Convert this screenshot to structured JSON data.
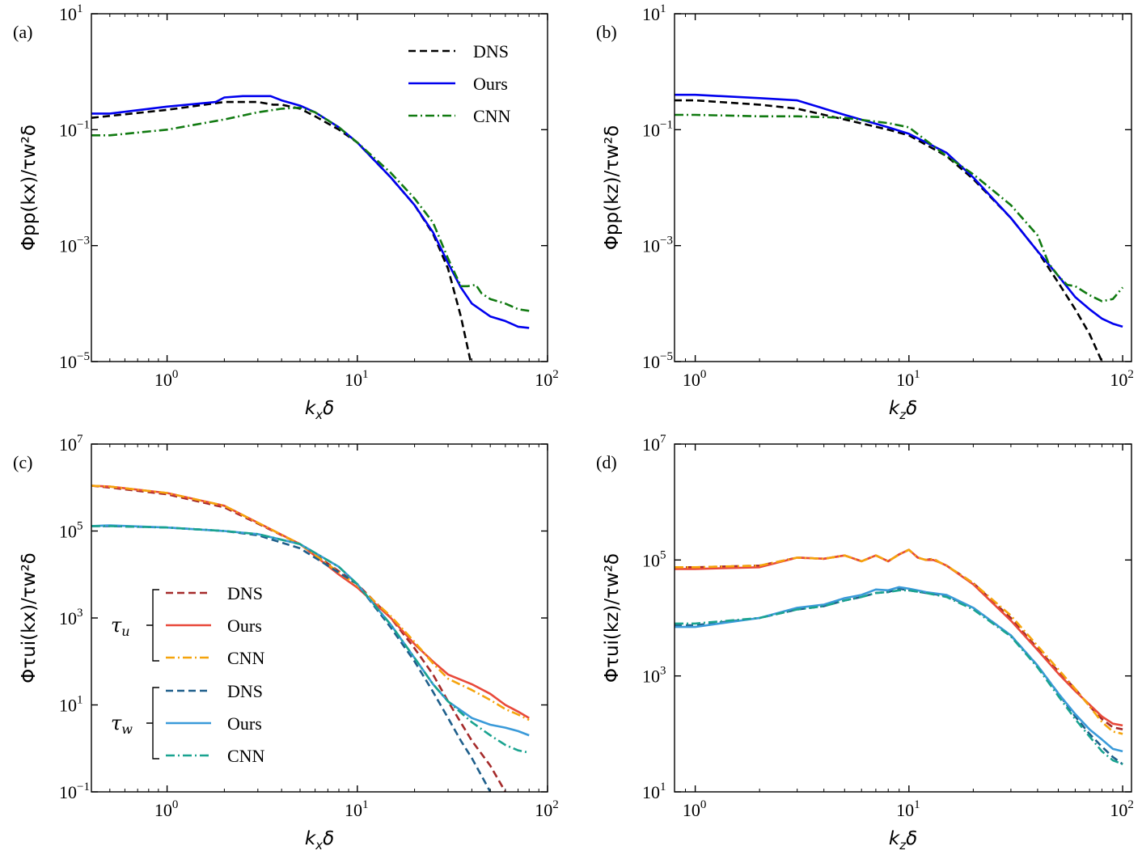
{
  "chart_data": [
    {
      "id": "a",
      "panel_label": "(a)",
      "type": "line",
      "xscale": "log",
      "yscale": "log",
      "xlim": [
        0.4,
        100
      ],
      "ylim": [
        1e-05,
        10
      ],
      "xticks": [
        {
          "value": 1,
          "base": "10",
          "exp": "0"
        },
        {
          "value": 10,
          "base": "10",
          "exp": "1"
        },
        {
          "value": 100,
          "base": "10",
          "exp": "2"
        }
      ],
      "yticks": [
        {
          "value": 1e-05,
          "base": "10",
          "exp": "−5"
        },
        {
          "value": 0.001,
          "base": "10",
          "exp": "−3"
        },
        {
          "value": 0.1,
          "base": "10",
          "exp": "−1"
        },
        {
          "value": 10,
          "base": "10",
          "exp": "1"
        }
      ],
      "xlabel": {
        "main": "k",
        "sub": "x",
        "tail": "δ"
      },
      "ylabel": "Φpp(kx)/τw²δ",
      "legend": {
        "position": "top-right",
        "entries": [
          "DNS",
          "Ours",
          "CNN"
        ]
      },
      "series": [
        {
          "name": "DNS",
          "color": "#000000",
          "style": "dashed",
          "x": [
            0.4,
            1,
            2,
            3,
            3.6,
            4,
            5,
            6,
            8,
            10,
            15,
            20,
            25,
            30,
            35,
            40
          ],
          "y": [
            0.16,
            0.22,
            0.3,
            0.3,
            0.27,
            0.27,
            0.23,
            0.17,
            0.1,
            0.06,
            0.015,
            0.005,
            0.0016,
            0.0004,
            6e-05,
            8e-06
          ]
        },
        {
          "name": "Ours",
          "color": "#0000ee",
          "style": "solid",
          "x": [
            0.4,
            0.5,
            1,
            1.8,
            2,
            2.5,
            3.5,
            4,
            5,
            6,
            8,
            10,
            15,
            20,
            25,
            30,
            35,
            40,
            50,
            60,
            70,
            80
          ],
          "y": [
            0.19,
            0.19,
            0.25,
            0.3,
            0.36,
            0.38,
            0.38,
            0.32,
            0.26,
            0.2,
            0.11,
            0.06,
            0.015,
            0.005,
            0.0017,
            0.0005,
            0.00019,
            0.0001,
            6e-05,
            5e-05,
            4e-05,
            3.8e-05
          ]
        },
        {
          "name": "CNN",
          "color": "#117a11",
          "style": "dashdot",
          "x": [
            0.4,
            0.5,
            1,
            2,
            3,
            4,
            5,
            6,
            8,
            10,
            15,
            20,
            25,
            30,
            35,
            38,
            42,
            45,
            50,
            60,
            70,
            80
          ],
          "y": [
            0.08,
            0.08,
            0.1,
            0.15,
            0.2,
            0.23,
            0.24,
            0.2,
            0.11,
            0.06,
            0.018,
            0.0065,
            0.0025,
            0.0006,
            0.0002,
            0.0002,
            0.00021,
            0.00015,
            0.00012,
            0.0001,
            8e-05,
            7.5e-05
          ]
        }
      ]
    },
    {
      "id": "b",
      "panel_label": "(b)",
      "type": "line",
      "xscale": "log",
      "yscale": "log",
      "xlim": [
        0.8,
        110
      ],
      "ylim": [
        1e-05,
        10
      ],
      "xticks": [
        {
          "value": 1,
          "base": "10",
          "exp": "0"
        },
        {
          "value": 10,
          "base": "10",
          "exp": "1"
        },
        {
          "value": 100,
          "base": "10",
          "exp": "2"
        }
      ],
      "yticks": [
        {
          "value": 1e-05,
          "base": "10",
          "exp": "−5"
        },
        {
          "value": 0.001,
          "base": "10",
          "exp": "−3"
        },
        {
          "value": 0.1,
          "base": "10",
          "exp": "−1"
        },
        {
          "value": 10,
          "base": "10",
          "exp": "1"
        }
      ],
      "xlabel": {
        "main": "k",
        "sub": "z",
        "tail": "δ"
      },
      "ylabel": "Φpp(kz)/τw²δ",
      "legend": null,
      "series": [
        {
          "name": "DNS",
          "color": "#000000",
          "style": "dashed",
          "x": [
            0.8,
            1,
            2,
            3,
            5,
            8,
            10,
            15,
            20,
            30,
            40,
            50,
            60,
            70,
            80
          ],
          "y": [
            0.32,
            0.32,
            0.27,
            0.23,
            0.15,
            0.1,
            0.08,
            0.035,
            0.014,
            0.003,
            0.0008,
            0.00023,
            8e-05,
            3e-05,
            1e-05
          ]
        },
        {
          "name": "Ours",
          "color": "#0000ee",
          "style": "solid",
          "x": [
            0.8,
            1,
            2,
            3,
            5,
            8,
            10,
            15,
            20,
            30,
            40,
            50,
            60,
            70,
            80,
            90,
            100
          ],
          "y": [
            0.4,
            0.4,
            0.35,
            0.32,
            0.18,
            0.11,
            0.085,
            0.04,
            0.015,
            0.003,
            0.0008,
            0.0003,
            0.00013,
            8e-05,
            5.5e-05,
            4.5e-05,
            4e-05
          ]
        },
        {
          "name": "CNN",
          "color": "#117a11",
          "style": "dashdot",
          "x": [
            0.8,
            1,
            2,
            3,
            5,
            8,
            10,
            15,
            20,
            30,
            40,
            45,
            50,
            55,
            60,
            70,
            80,
            90,
            100
          ],
          "y": [
            0.18,
            0.18,
            0.17,
            0.17,
            0.16,
            0.13,
            0.11,
            0.035,
            0.017,
            0.005,
            0.0015,
            0.0005,
            0.0003,
            0.00021,
            0.0002,
            0.00014,
            0.00011,
            0.00012,
            0.00019
          ]
        }
      ]
    },
    {
      "id": "c",
      "panel_label": "(c)",
      "type": "line",
      "xscale": "log",
      "yscale": "log",
      "xlim": [
        0.4,
        100
      ],
      "ylim": [
        0.1,
        10000000
      ],
      "xticks": [
        {
          "value": 1,
          "base": "10",
          "exp": "0"
        },
        {
          "value": 10,
          "base": "10",
          "exp": "1"
        },
        {
          "value": 100,
          "base": "10",
          "exp": "2"
        }
      ],
      "yticks": [
        {
          "value": 0.1,
          "base": "10",
          "exp": "−1"
        },
        {
          "value": 10,
          "base": "10",
          "exp": "1"
        },
        {
          "value": 1000,
          "base": "10",
          "exp": "3"
        },
        {
          "value": 100000,
          "base": "10",
          "exp": "5"
        },
        {
          "value": 10000000,
          "base": "10",
          "exp": "7"
        }
      ],
      "xlabel": {
        "main": "k",
        "sub": "x",
        "tail": "δ"
      },
      "ylabel": "Φτui(kx)/τw²δ",
      "legend": {
        "position": "center-left",
        "groups": [
          {
            "symbol": "τ",
            "sub": "u",
            "entries": [
              "DNS",
              "Ours",
              "CNN"
            ]
          },
          {
            "symbol": "τ",
            "sub": "w",
            "entries": [
              "DNS",
              "Ours",
              "CNN"
            ]
          }
        ]
      },
      "series": [
        {
          "name": "DNS",
          "group": "τu",
          "color": "#a52a2a",
          "style": "dashed",
          "x": [
            0.4,
            0.5,
            1,
            2,
            5,
            10,
            15,
            20,
            25,
            30,
            40,
            50,
            60
          ],
          "y": [
            1100000,
            1000000,
            700000,
            350000,
            50000,
            6000,
            1000,
            200,
            50,
            12,
            1.5,
            0.4,
            0.1
          ]
        },
        {
          "name": "Ours",
          "group": "τu",
          "color": "#e8493a",
          "style": "solid",
          "x": [
            0.4,
            0.5,
            1,
            2,
            5,
            8,
            10,
            15,
            20,
            25,
            30,
            40,
            50,
            60,
            70,
            80
          ],
          "y": [
            1100000,
            1050000,
            750000,
            380000,
            50000,
            10000,
            5000,
            1000,
            250,
            100,
            50,
            30,
            18,
            10,
            7,
            5
          ]
        },
        {
          "name": "CNN",
          "group": "τu",
          "color": "#f5a40c",
          "style": "dashdot",
          "x": [
            0.4,
            0.5,
            1,
            2,
            5,
            10,
            15,
            20,
            25,
            30,
            40,
            50,
            60,
            70,
            80
          ],
          "y": [
            1100000,
            1050000,
            750000,
            380000,
            50000,
            5500,
            1100,
            280,
            90,
            40,
            22,
            13,
            8,
            6,
            4.5
          ]
        },
        {
          "name": "DNS",
          "group": "τw",
          "color": "#1f5f8b",
          "style": "dashed",
          "x": [
            0.4,
            0.5,
            1,
            2,
            3,
            5,
            10,
            15,
            20,
            25,
            30,
            35,
            40,
            50
          ],
          "y": [
            130000,
            130000,
            120000,
            100000,
            80000,
            40000,
            6000,
            600,
            100,
            20,
            5,
            1.5,
            0.6,
            0.1
          ]
        },
        {
          "name": "Ours",
          "group": "τw",
          "color": "#3a9ad9",
          "style": "solid",
          "x": [
            0.4,
            0.5,
            1,
            2,
            3,
            5,
            8,
            10,
            15,
            20,
            25,
            30,
            40,
            50,
            60,
            70,
            80
          ],
          "y": [
            130000,
            135000,
            120000,
            100000,
            85000,
            50000,
            15000,
            6000,
            700,
            120,
            30,
            12,
            5,
            3.5,
            3,
            2.5,
            2
          ]
        },
        {
          "name": "CNN",
          "group": "τw",
          "color": "#1aa390",
          "style": "dashdot",
          "x": [
            0.4,
            0.5,
            1,
            2,
            3,
            5,
            8,
            10,
            15,
            20,
            25,
            30,
            40,
            50,
            60,
            70,
            80
          ],
          "y": [
            130000,
            130000,
            120000,
            100000,
            85000,
            50000,
            15000,
            6000,
            700,
            120,
            30,
            12,
            4,
            2,
            1.2,
            0.9,
            0.8
          ]
        }
      ]
    },
    {
      "id": "d",
      "panel_label": "(d)",
      "type": "line",
      "xscale": "log",
      "yscale": "log",
      "xlim": [
        0.8,
        110
      ],
      "ylim": [
        10,
        10000000
      ],
      "xticks": [
        {
          "value": 1,
          "base": "10",
          "exp": "0"
        },
        {
          "value": 10,
          "base": "10",
          "exp": "1"
        },
        {
          "value": 100,
          "base": "10",
          "exp": "2"
        }
      ],
      "yticks": [
        {
          "value": 10,
          "base": "10",
          "exp": "1"
        },
        {
          "value": 1000,
          "base": "10",
          "exp": "3"
        },
        {
          "value": 100000,
          "base": "10",
          "exp": "5"
        },
        {
          "value": 10000000,
          "base": "10",
          "exp": "7"
        }
      ],
      "xlabel": {
        "main": "k",
        "sub": "z",
        "tail": "δ"
      },
      "ylabel": "Φτui(kz)/τw²δ",
      "legend": null,
      "series": [
        {
          "name": "DNS",
          "group": "τu",
          "color": "#a52a2a",
          "style": "dashed",
          "x": [
            0.8,
            1,
            2,
            3,
            4,
            5,
            6,
            7,
            8,
            9,
            10,
            11,
            12,
            13,
            14,
            15,
            20,
            30,
            40,
            50,
            60,
            70,
            80,
            90,
            100
          ],
          "y": [
            75000,
            75000,
            80000,
            110000,
            105000,
            120000,
            95000,
            120000,
            95000,
            125000,
            150000,
            110000,
            100000,
            105000,
            90000,
            80000,
            40000,
            10000,
            3000,
            1200,
            600,
            300,
            180,
            130,
            120
          ]
        },
        {
          "name": "Ours",
          "group": "τu",
          "color": "#e8493a",
          "style": "solid",
          "x": [
            0.8,
            1,
            2,
            3,
            4,
            5,
            6,
            7,
            8,
            9,
            10,
            11,
            12,
            13,
            14,
            15,
            20,
            30,
            40,
            50,
            60,
            70,
            80,
            90,
            100
          ],
          "y": [
            70000,
            70000,
            75000,
            110000,
            105000,
            120000,
            95000,
            120000,
            95000,
            125000,
            150000,
            110000,
            100000,
            100000,
            90000,
            80000,
            38000,
            9000,
            2800,
            1100,
            550,
            320,
            200,
            150,
            140
          ]
        },
        {
          "name": "CNN",
          "group": "τu",
          "color": "#f5a40c",
          "style": "dashdot",
          "x": [
            0.8,
            1,
            2,
            3,
            4,
            5,
            6,
            7,
            8,
            9,
            10,
            11,
            12,
            13,
            14,
            15,
            20,
            30,
            40,
            50,
            60,
            70,
            80,
            90,
            100
          ],
          "y": [
            75000,
            75000,
            80000,
            110000,
            105000,
            120000,
            95000,
            120000,
            95000,
            125000,
            150000,
            110000,
            100000,
            105000,
            90000,
            80000,
            40000,
            11000,
            3300,
            1300,
            600,
            300,
            160,
            110,
            100
          ]
        },
        {
          "name": "DNS",
          "group": "τw",
          "color": "#1f5f8b",
          "style": "dashed",
          "x": [
            0.8,
            1,
            2,
            3,
            4,
            5,
            6,
            7,
            8,
            9,
            10,
            12,
            15,
            20,
            30,
            40,
            50,
            60,
            70,
            80,
            90,
            100
          ],
          "y": [
            7500,
            7500,
            10000,
            14000,
            16000,
            20000,
            23000,
            27000,
            28000,
            32000,
            30000,
            27000,
            24000,
            15000,
            5000,
            1500,
            500,
            200,
            100,
            60,
            40,
            30
          ]
        },
        {
          "name": "Ours",
          "group": "τw",
          "color": "#3a9ad9",
          "style": "solid",
          "x": [
            0.8,
            1,
            2,
            3,
            4,
            5,
            6,
            7,
            8,
            9,
            10,
            12,
            15,
            20,
            30,
            40,
            50,
            60,
            70,
            80,
            90,
            100
          ],
          "y": [
            7000,
            7000,
            10000,
            15000,
            17000,
            22000,
            25000,
            31000,
            30000,
            34000,
            32000,
            28000,
            25000,
            15000,
            5000,
            1500,
            500,
            220,
            120,
            80,
            55,
            50
          ]
        },
        {
          "name": "CNN",
          "group": "τw",
          "color": "#1aa390",
          "style": "dashdot",
          "x": [
            0.8,
            1,
            2,
            3,
            4,
            5,
            6,
            7,
            8,
            9,
            10,
            12,
            15,
            20,
            30,
            40,
            50,
            60,
            70,
            80,
            90,
            100
          ],
          "y": [
            8000,
            8000,
            10000,
            14000,
            16000,
            20000,
            23000,
            27000,
            28000,
            30000,
            30000,
            27000,
            23000,
            14000,
            4800,
            1400,
            450,
            180,
            90,
            50,
            35,
            30
          ]
        }
      ]
    }
  ]
}
